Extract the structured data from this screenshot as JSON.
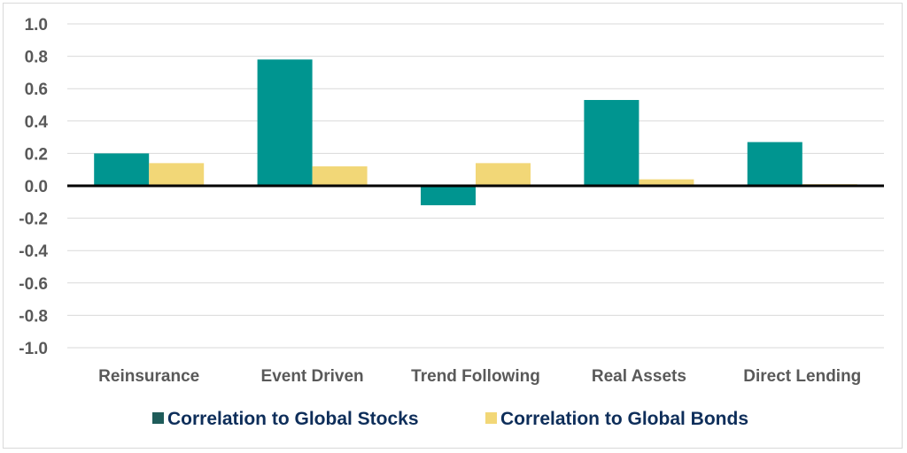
{
  "chart_data": {
    "type": "bar",
    "title": "",
    "xlabel": "",
    "ylabel": "",
    "categories": [
      "Reinsurance",
      "Event Driven",
      "Trend Following",
      "Real Assets",
      "Direct Lending"
    ],
    "series": [
      {
        "name": "Correlation to Global Stocks",
        "color": "#009590",
        "values": [
          0.2,
          0.78,
          -0.12,
          0.53,
          0.27
        ]
      },
      {
        "name": "Correlation to Global Bonds",
        "color": "#f2d777",
        "values": [
          0.14,
          0.12,
          0.14,
          0.04,
          0.01
        ]
      }
    ],
    "ylim": [
      -1.0,
      1.0
    ],
    "yticks": [
      "1.0",
      "0.8",
      "0.6",
      "0.4",
      "0.2",
      "0.0",
      "-0.2",
      "-0.4",
      "-0.6",
      "-0.8",
      "-1.0"
    ],
    "grid": true,
    "legend_position": "bottom"
  }
}
